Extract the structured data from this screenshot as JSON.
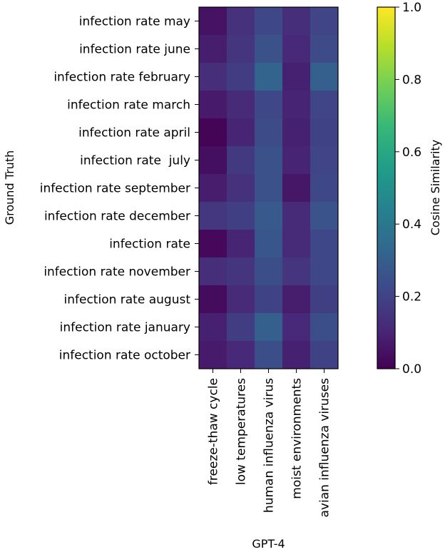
{
  "chart_data": {
    "type": "heatmap",
    "xlabel": "GPT-4",
    "ylabel": "Ground Truth",
    "x_categories": [
      "freeze-thaw cycle",
      "low temperatures",
      "human influenza virus",
      "moist environments",
      "avian influenza viruses"
    ],
    "y_categories": [
      "infection rate may",
      "infection rate june",
      "infection rate february",
      "infection rate march",
      "infection rate april",
      "infection rate  july",
      "infection rate september",
      "infection rate december",
      "infection rate",
      "infection rate november",
      "infection rate august",
      "infection rate january",
      "infection rate october"
    ],
    "values": [
      [
        0.05,
        0.14,
        0.22,
        0.13,
        0.21
      ],
      [
        0.08,
        0.15,
        0.25,
        0.11,
        0.23
      ],
      [
        0.13,
        0.18,
        0.32,
        0.09,
        0.3
      ],
      [
        0.07,
        0.12,
        0.22,
        0.1,
        0.21
      ],
      [
        0.01,
        0.1,
        0.23,
        0.09,
        0.2
      ],
      [
        0.04,
        0.17,
        0.25,
        0.1,
        0.21
      ],
      [
        0.08,
        0.14,
        0.25,
        0.06,
        0.22
      ],
      [
        0.16,
        0.19,
        0.28,
        0.12,
        0.26
      ],
      [
        0.02,
        0.1,
        0.27,
        0.12,
        0.22
      ],
      [
        0.13,
        0.15,
        0.24,
        0.15,
        0.22
      ],
      [
        0.03,
        0.12,
        0.2,
        0.08,
        0.19
      ],
      [
        0.09,
        0.18,
        0.3,
        0.11,
        0.24
      ],
      [
        0.07,
        0.11,
        0.24,
        0.09,
        0.2
      ]
    ],
    "colormap": "viridis",
    "colorbar": {
      "label": "Cosine Similarity",
      "range": [
        0.0,
        1.0
      ],
      "ticks": [
        "0.0",
        "0.2",
        "0.4",
        "0.6",
        "0.8",
        "1.0"
      ]
    }
  },
  "colors": {
    "viridis_stops": [
      "#440154",
      "#482878",
      "#3e4989",
      "#31688e",
      "#26828e",
      "#1f9e89",
      "#35b779",
      "#6ece58",
      "#b5de2b",
      "#fde725"
    ]
  }
}
